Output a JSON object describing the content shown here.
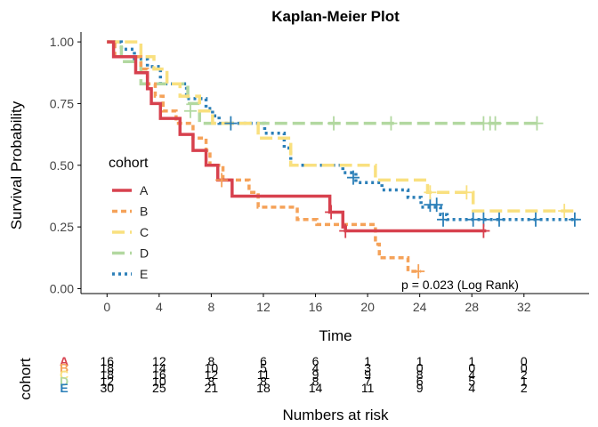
{
  "chart_data": {
    "type": "line",
    "title": "Kaplan-Meier Plot",
    "xlabel": "Time",
    "ylabel": "Survival Probability",
    "xlim": [
      -2,
      37
    ],
    "ylim": [
      -0.02,
      1.04
    ],
    "x_ticks": [
      0,
      4,
      8,
      12,
      16,
      20,
      24,
      28,
      32
    ],
    "y_ticks": [
      0,
      0.25,
      0.5,
      0.75,
      1.0
    ],
    "y_tick_labels": [
      "0.00",
      "0.25",
      "0.50",
      "0.75",
      "1.00"
    ],
    "grid": false,
    "legend": {
      "title": "cohort",
      "position": "left",
      "entries": [
        "A",
        "B",
        "C",
        "D",
        "E"
      ]
    },
    "annotation": "p = 0.023 (Log Rank)",
    "series": [
      {
        "name": "A",
        "color": "#d7414e",
        "dash": "solid",
        "steps": [
          [
            0,
            1.0
          ],
          [
            0.5,
            0.94
          ],
          [
            2.2,
            0.875
          ],
          [
            3.1,
            0.81
          ],
          [
            3.4,
            0.75
          ],
          [
            4.1,
            0.69
          ],
          [
            5.6,
            0.625
          ],
          [
            6.6,
            0.56
          ],
          [
            7.6,
            0.5
          ],
          [
            8.5,
            0.44
          ],
          [
            9.6,
            0.375
          ],
          [
            17.1,
            0.31
          ],
          [
            18.1,
            0.25
          ],
          [
            18.3,
            0.234
          ],
          [
            29.1,
            0.234
          ]
        ],
        "censored": [
          [
            17.2,
            0.31
          ],
          [
            18.3,
            0.234
          ],
          [
            28.9,
            0.234
          ]
        ]
      },
      {
        "name": "B",
        "color": "#f5a259",
        "dash": "short",
        "steps": [
          [
            0,
            1.0
          ],
          [
            0.6,
            0.94
          ],
          [
            2.6,
            0.89
          ],
          [
            3.1,
            0.83
          ],
          [
            3.7,
            0.78
          ],
          [
            4.3,
            0.72
          ],
          [
            5.3,
            0.67
          ],
          [
            6.6,
            0.61
          ],
          [
            7.6,
            0.56
          ],
          [
            7.9,
            0.5
          ],
          [
            8.9,
            0.44
          ],
          [
            10.9,
            0.39
          ],
          [
            11.6,
            0.33
          ],
          [
            14.6,
            0.28
          ],
          [
            16.1,
            0.26
          ],
          [
            20.6,
            0.18
          ],
          [
            20.9,
            0.125
          ],
          [
            23.1,
            0.07
          ],
          [
            24.1,
            0.07
          ]
        ],
        "censored": [
          [
            8.8,
            0.44
          ],
          [
            23.9,
            0.07
          ]
        ]
      },
      {
        "name": "C",
        "color": "#f9e07f",
        "dash": "long",
        "steps": [
          [
            0,
            1.0
          ],
          [
            2.6,
            0.94
          ],
          [
            3.6,
            0.89
          ],
          [
            4.6,
            0.83
          ],
          [
            5.6,
            0.78
          ],
          [
            7.1,
            0.72
          ],
          [
            8.1,
            0.67
          ],
          [
            11.6,
            0.61
          ],
          [
            14.1,
            0.5
          ],
          [
            20.6,
            0.44
          ],
          [
            24.6,
            0.39
          ],
          [
            27.1,
            0.39
          ],
          [
            28.1,
            0.315
          ],
          [
            36.1,
            0.315
          ]
        ],
        "censored": [
          [
            24.8,
            0.39
          ],
          [
            27.6,
            0.39
          ],
          [
            35.1,
            0.315
          ]
        ]
      },
      {
        "name": "D",
        "color": "#b2d8a0",
        "dash": "long",
        "steps": [
          [
            0,
            1.0
          ],
          [
            1.1,
            0.92
          ],
          [
            2.6,
            0.83
          ],
          [
            6.2,
            0.75
          ],
          [
            7.1,
            0.67
          ],
          [
            33.1,
            0.67
          ]
        ],
        "censored": [
          [
            6.4,
            0.72
          ],
          [
            17.4,
            0.67
          ],
          [
            21.8,
            0.67
          ],
          [
            28.9,
            0.67
          ],
          [
            29.4,
            0.67
          ],
          [
            29.8,
            0.67
          ],
          [
            33.0,
            0.67
          ]
        ]
      },
      {
        "name": "E",
        "color": "#2b7fb8",
        "dash": "dot",
        "steps": [
          [
            0,
            1.0
          ],
          [
            1.1,
            0.97
          ],
          [
            2.1,
            0.93
          ],
          [
            3.1,
            0.9
          ],
          [
            4.1,
            0.83
          ],
          [
            6.1,
            0.77
          ],
          [
            7.6,
            0.73
          ],
          [
            8.1,
            0.7
          ],
          [
            8.6,
            0.67
          ],
          [
            12.1,
            0.63
          ],
          [
            13.6,
            0.57
          ],
          [
            14.1,
            0.5
          ],
          [
            18.1,
            0.47
          ],
          [
            19.1,
            0.43
          ],
          [
            21.1,
            0.4
          ],
          [
            23.1,
            0.37
          ],
          [
            24.1,
            0.33
          ],
          [
            25.6,
            0.3
          ],
          [
            26.1,
            0.28
          ],
          [
            36.1,
            0.28
          ]
        ],
        "censored": [
          [
            9.5,
            0.67
          ],
          [
            18.9,
            0.45
          ],
          [
            24.8,
            0.34
          ],
          [
            25.3,
            0.34
          ],
          [
            25.8,
            0.28
          ],
          [
            28.1,
            0.28
          ],
          [
            28.9,
            0.28
          ],
          [
            30.1,
            0.28
          ],
          [
            32.9,
            0.28
          ],
          [
            35.9,
            0.28
          ]
        ]
      }
    ]
  },
  "risk_table": {
    "title": "Numbers at risk",
    "ylabel": "cohort",
    "times": [
      0,
      4,
      8,
      12,
      16,
      20,
      24,
      28,
      32
    ],
    "rows": [
      {
        "cohort": "A",
        "color": "#d7414e",
        "counts": [
          16,
          12,
          8,
          6,
          6,
          1,
          1,
          1,
          0
        ]
      },
      {
        "cohort": "B",
        "color": "#f5a259",
        "counts": [
          18,
          14,
          10,
          5,
          4,
          3,
          0,
          0,
          0
        ]
      },
      {
        "cohort": "C",
        "color": "#f9e07f",
        "counts": [
          18,
          16,
          12,
          11,
          9,
          9,
          8,
          4,
          2
        ]
      },
      {
        "cohort": "D",
        "color": "#b2d8a0",
        "counts": [
          12,
          10,
          8,
          8,
          8,
          7,
          6,
          5,
          1
        ]
      },
      {
        "cohort": "E",
        "color": "#2b7fb8",
        "counts": [
          30,
          25,
          21,
          18,
          14,
          11,
          9,
          4,
          2
        ]
      }
    ]
  }
}
